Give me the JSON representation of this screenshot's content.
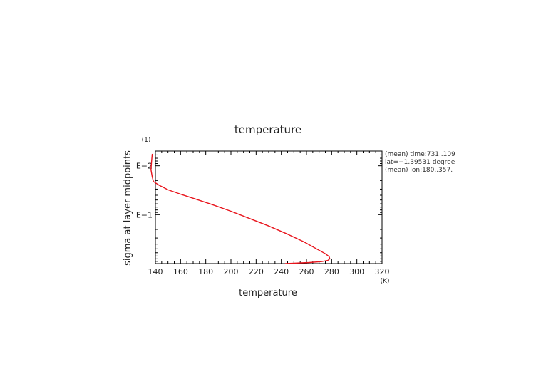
{
  "chart_data": {
    "type": "line",
    "title": "temperature",
    "xlabel": "temperature",
    "ylabel": "sigma at layer midpoints",
    "x_unit": "(K)",
    "y_unit": "(1)",
    "xlim": [
      140,
      320
    ],
    "x_ticks": [
      140,
      160,
      180,
      200,
      220,
      240,
      260,
      280,
      300,
      320
    ],
    "y_scale": "log",
    "ylim": [
      1,
      0.005
    ],
    "y_ticks": [
      {
        "value": 0.01,
        "label": "E−2"
      },
      {
        "value": 0.1,
        "label": "E−1"
      }
    ],
    "annotations": [
      "(mean) time:731..109",
      "lat=−1.39531 degree",
      "(mean) lon:180..357."
    ],
    "series": [
      {
        "color": "#e8141c",
        "x": [
          137.5,
          137.0,
          136.5,
          137.5,
          138.5,
          143,
          150,
          160,
          172,
          185,
          200,
          215,
          230,
          245,
          258,
          268,
          275,
          278,
          278.5,
          277,
          272,
          262,
          250,
          243
        ],
        "y": [
          0.0057,
          0.008,
          0.012,
          0.017,
          0.021,
          0.025,
          0.031,
          0.038,
          0.048,
          0.062,
          0.085,
          0.12,
          0.17,
          0.25,
          0.36,
          0.5,
          0.63,
          0.72,
          0.8,
          0.86,
          0.91,
          0.95,
          0.98,
          1.0
        ]
      }
    ]
  }
}
